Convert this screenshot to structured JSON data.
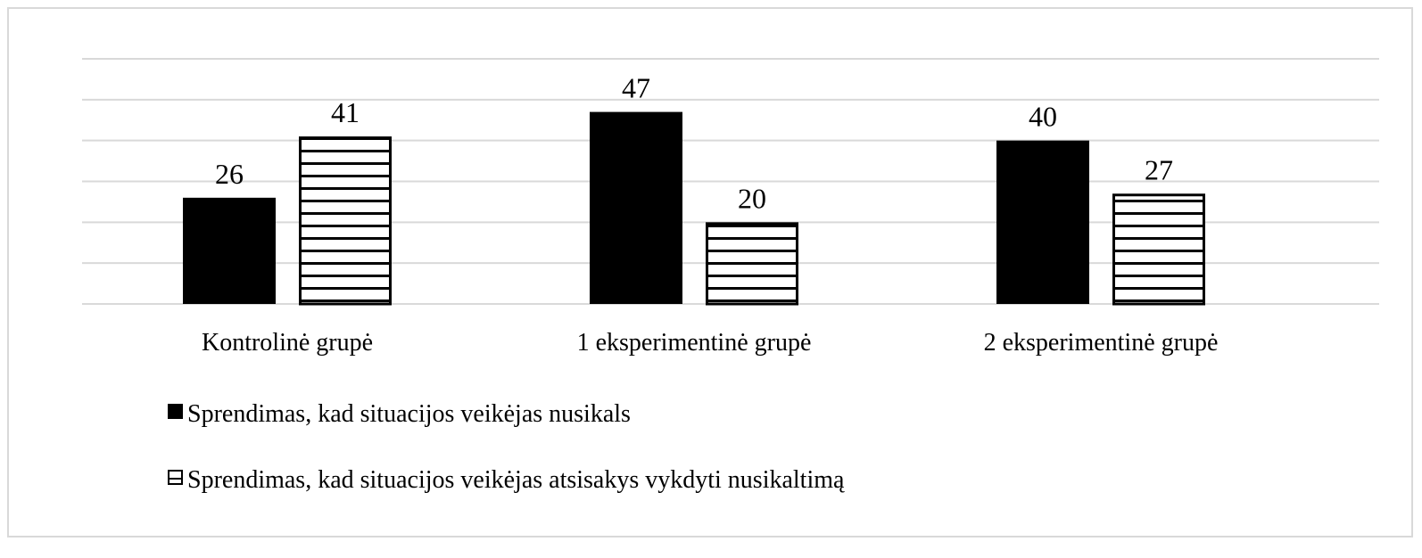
{
  "chart_data": {
    "type": "bar",
    "title": "",
    "xlabel": "",
    "ylabel": "",
    "ylim": [
      0,
      60
    ],
    "y_gridline_step": 10,
    "grid": true,
    "y_tick_labels_shown": false,
    "categories": [
      "Kontrolinė grupė",
      "1 eksperimentinė grupė",
      "2 eksperimentinė grupė"
    ],
    "series": [
      {
        "name": "Sprendimas, kad situacijos veikėjas nusikals",
        "values": [
          26,
          47,
          40
        ],
        "fill": "solid",
        "color": "#000000"
      },
      {
        "name": "Sprendimas, kad situacijos veikėjas atsisakys vykdyti nusikaltimą",
        "values": [
          41,
          20,
          27
        ],
        "fill": "horizontal-stripes",
        "color": "#000000"
      }
    ],
    "data_labels": true,
    "legend_position": "bottom-left",
    "gridline_color": "#d9d9d9"
  }
}
